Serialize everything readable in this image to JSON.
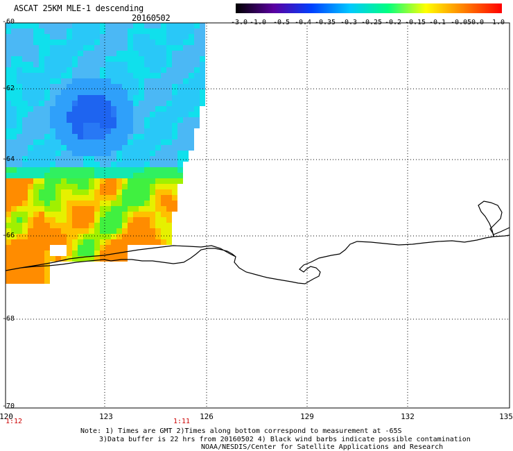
{
  "header": {
    "title": "ASCAT 25KM MLE-1 descending",
    "date": "20160502"
  },
  "colorbar": {
    "labels": [
      "-3.0",
      "-1.0",
      "-0.5",
      "-0.4",
      "-0.35",
      "-0.3",
      "-0.25",
      "-0.2",
      "-0.15",
      "-0.1",
      "-0.05",
      "0.0",
      "1.0"
    ],
    "colors": [
      "#000000",
      "#5a00a0",
      "#0040ff",
      "#00c8ff",
      "#00ff80",
      "#ffff00",
      "#ff8000",
      "#ff0000"
    ]
  },
  "axes": {
    "lat_labels": [
      "-60",
      "-62",
      "-64",
      "-66",
      "-68",
      "-70"
    ],
    "lon_labels": [
      "120",
      "123",
      "126",
      "129",
      "132",
      "135"
    ],
    "time_labels": [
      "1:12",
      "1:11"
    ],
    "grid": "dotted"
  },
  "notes": {
    "line1": "Note: 1) Times are GMT 2)Times along bottom correspond to measurement at -65S",
    "line2": "3)Data buffer is 22 hrs from 20160502 4) Black wind barbs indicate possible contamination",
    "line3": "NOAA/NESDIS/Center for Satellite Applications and Research"
  }
}
